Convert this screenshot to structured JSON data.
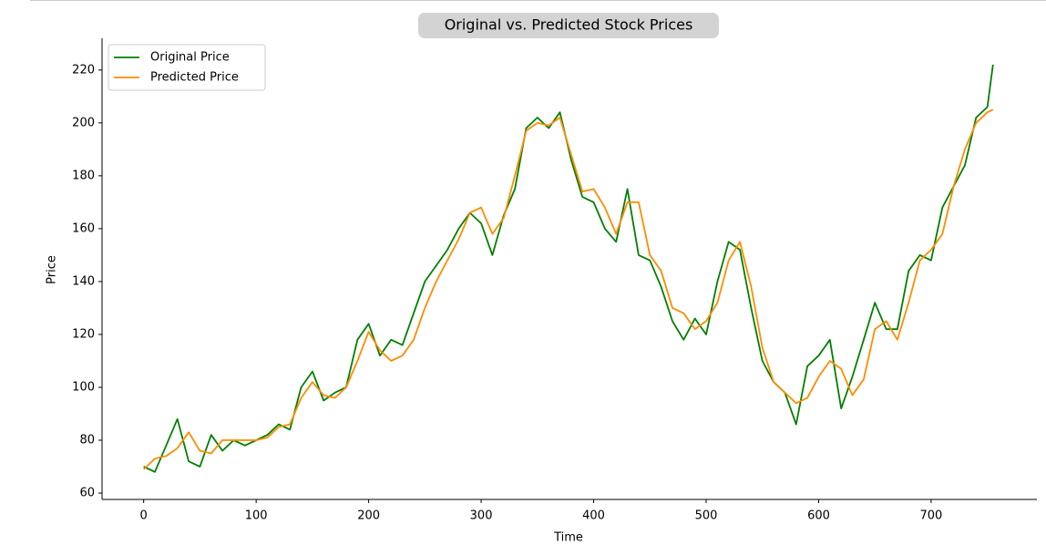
{
  "chart_data": {
    "type": "line",
    "title": "Original vs. Predicted Stock Prices",
    "x_label": "Time",
    "y_label": "Price",
    "x": [
      0,
      10,
      20,
      30,
      40,
      50,
      60,
      70,
      80,
      90,
      100,
      110,
      120,
      130,
      140,
      150,
      160,
      170,
      180,
      190,
      200,
      210,
      220,
      230,
      240,
      250,
      260,
      270,
      280,
      290,
      300,
      310,
      320,
      330,
      340,
      350,
      360,
      370,
      380,
      390,
      400,
      410,
      420,
      430,
      440,
      450,
      460,
      470,
      480,
      490,
      500,
      510,
      520,
      530,
      540,
      550,
      560,
      570,
      580,
      590,
      600,
      610,
      620,
      630,
      640,
      650,
      660,
      670,
      680,
      690,
      700,
      710,
      720,
      730,
      740,
      750,
      755
    ],
    "series": [
      {
        "name": "Original Price",
        "color": "#008000",
        "values": [
          70,
          68,
          78,
          88,
          72,
          70,
          82,
          76,
          80,
          78,
          80,
          82,
          86,
          84,
          100,
          106,
          95,
          98,
          100,
          118,
          124,
          112,
          118,
          116,
          128,
          140,
          146,
          152,
          160,
          166,
          162,
          150,
          165,
          175,
          198,
          202,
          198,
          204,
          186,
          172,
          170,
          160,
          155,
          175,
          150,
          148,
          138,
          125,
          118,
          126,
          120,
          140,
          155,
          152,
          130,
          110,
          102,
          98,
          86,
          108,
          112,
          118,
          92,
          104,
          118,
          132,
          122,
          122,
          144,
          150,
          148,
          168,
          176,
          184,
          202,
          206,
          222
        ]
      },
      {
        "name": "Predicted Price",
        "color": "#ff8c00",
        "values": [
          69,
          73,
          74,
          77,
          83,
          76,
          75,
          80,
          80,
          80,
          80,
          81,
          85,
          86,
          96,
          102,
          97,
          96,
          100,
          110,
          121,
          114,
          110,
          112,
          118,
          130,
          140,
          148,
          156,
          166,
          168,
          158,
          164,
          180,
          197,
          200,
          199,
          202,
          188,
          174,
          175,
          168,
          158,
          170,
          170,
          150,
          144,
          130,
          128,
          122,
          125,
          132,
          148,
          155,
          138,
          115,
          102,
          98,
          94,
          96,
          104,
          110,
          107,
          97,
          103,
          122,
          125,
          118,
          132,
          148,
          152,
          158,
          176,
          190,
          200,
          204,
          205
        ]
      }
    ],
    "xlim": [
      -37,
      794
    ],
    "ylim": [
      57.6,
      232
    ],
    "xticks": [
      0,
      100,
      200,
      300,
      400,
      500,
      600,
      700
    ],
    "yticks": [
      60,
      80,
      100,
      120,
      140,
      160,
      180,
      200,
      220
    ],
    "legend": "upper left"
  }
}
